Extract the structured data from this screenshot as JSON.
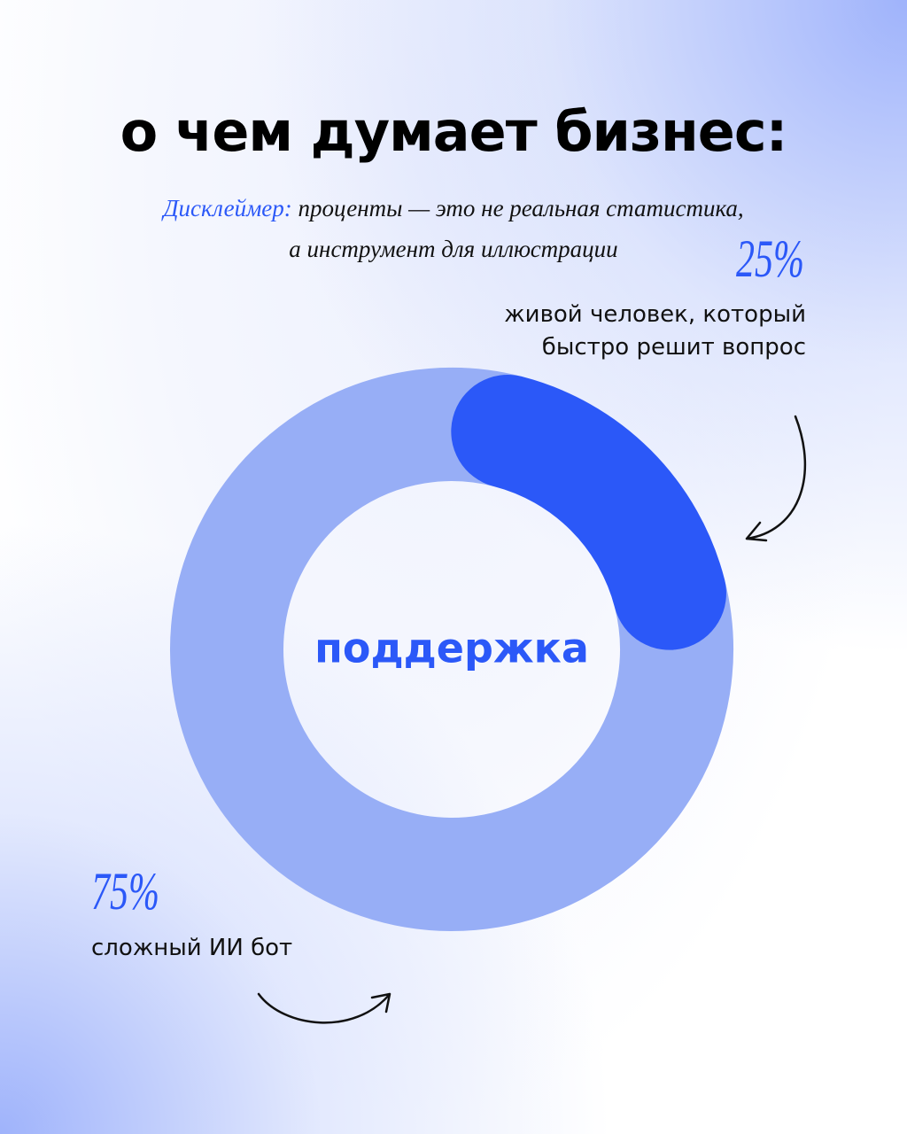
{
  "chart_data": {
    "type": "pie",
    "title": "о чем думает бизнес:",
    "disclaimer_label": "Дисклеймер:",
    "disclaimer_lines": [
      "проценты — это не реальная статистика,",
      "а инструмент для иллюстрации"
    ],
    "center_label": "поддержка",
    "categories": [
      "живой человек, который быстро решит вопрос",
      "сложный ИИ бот"
    ],
    "values": [
      25,
      75
    ],
    "value_labels": [
      "25%",
      "75%"
    ],
    "colors": [
      "#2b58f8",
      "#97aef6"
    ]
  }
}
